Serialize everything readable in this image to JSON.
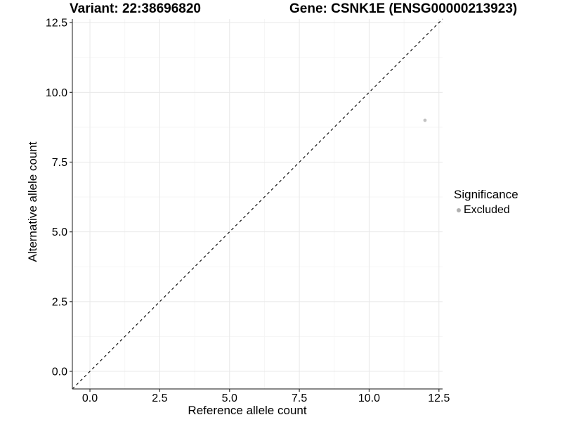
{
  "title": {
    "variant": "Variant: 22:38696820",
    "gene": "Gene: CSNK1E (ENSG00000213923)"
  },
  "chart_data": {
    "type": "scatter",
    "xlabel": "Reference allele count",
    "ylabel": "Alternative allele count",
    "xlim": [
      -0.63,
      12.63
    ],
    "ylim": [
      -0.63,
      12.63
    ],
    "x_ticks": [
      0.0,
      2.5,
      5.0,
      7.5,
      10.0,
      12.5
    ],
    "y_ticks": [
      0.0,
      2.5,
      5.0,
      7.5,
      10.0,
      12.5
    ],
    "x_tick_labels": [
      "0.0",
      "2.5",
      "5.0",
      "7.5",
      "10.0",
      "12.5"
    ],
    "y_tick_labels": [
      "0.0",
      "2.5",
      "5.0",
      "7.5",
      "10.0",
      "12.5"
    ],
    "minor_ticks": [
      1.25,
      3.75,
      6.25,
      8.75,
      11.25
    ],
    "grid": true,
    "legend_position": "right",
    "identity_line": {
      "slope": 1,
      "intercept": 0,
      "style": "dashed"
    },
    "points": [
      {
        "x": 12,
        "y": 9,
        "significance": "Excluded"
      }
    ]
  },
  "legend": {
    "title": "Significance",
    "items": [
      {
        "label": "Excluded",
        "color": "#b0b0b0"
      }
    ]
  },
  "colors": {
    "point": "#c2c2c2",
    "grid_major": "#e8e8e8",
    "grid_minor": "#f4f4f4",
    "axis_line": "#404040",
    "tick_mark": "#333333",
    "identity_line": "#000000",
    "text": "#000000",
    "background": "#ffffff"
  }
}
